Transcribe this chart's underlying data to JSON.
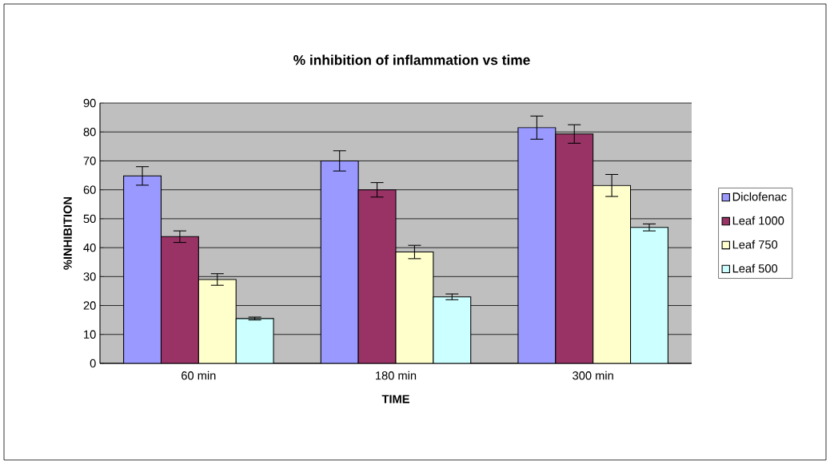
{
  "chart_data": {
    "type": "bar",
    "title": "% inhibition of inflammation vs time",
    "xlabel": "TIME",
    "ylabel": "%INHIBITION",
    "categories": [
      "60 min",
      "180 min",
      "300 min"
    ],
    "series": [
      {
        "name": "Diclofenac",
        "color": "#9999ff",
        "values": [
          64.8,
          70,
          81.5
        ],
        "errors": [
          3.2,
          3.5,
          4
        ]
      },
      {
        "name": "Leaf 1000",
        "color": "#993366",
        "values": [
          43.8,
          60,
          79.3
        ],
        "errors": [
          2,
          2.5,
          3.2
        ]
      },
      {
        "name": "Leaf 750",
        "color": "#ffffcc",
        "values": [
          29,
          38.5,
          61.5
        ],
        "errors": [
          2,
          2.3,
          3.8
        ]
      },
      {
        "name": "Leaf 500",
        "color": "#ccffff",
        "values": [
          15.5,
          23,
          47
        ],
        "errors": [
          0.5,
          1,
          1.2
        ]
      }
    ],
    "ylim": [
      0,
      90
    ],
    "yticks": [
      0,
      10,
      20,
      30,
      40,
      50,
      60,
      70,
      80,
      90
    ],
    "grid": "y",
    "legend": "right"
  }
}
